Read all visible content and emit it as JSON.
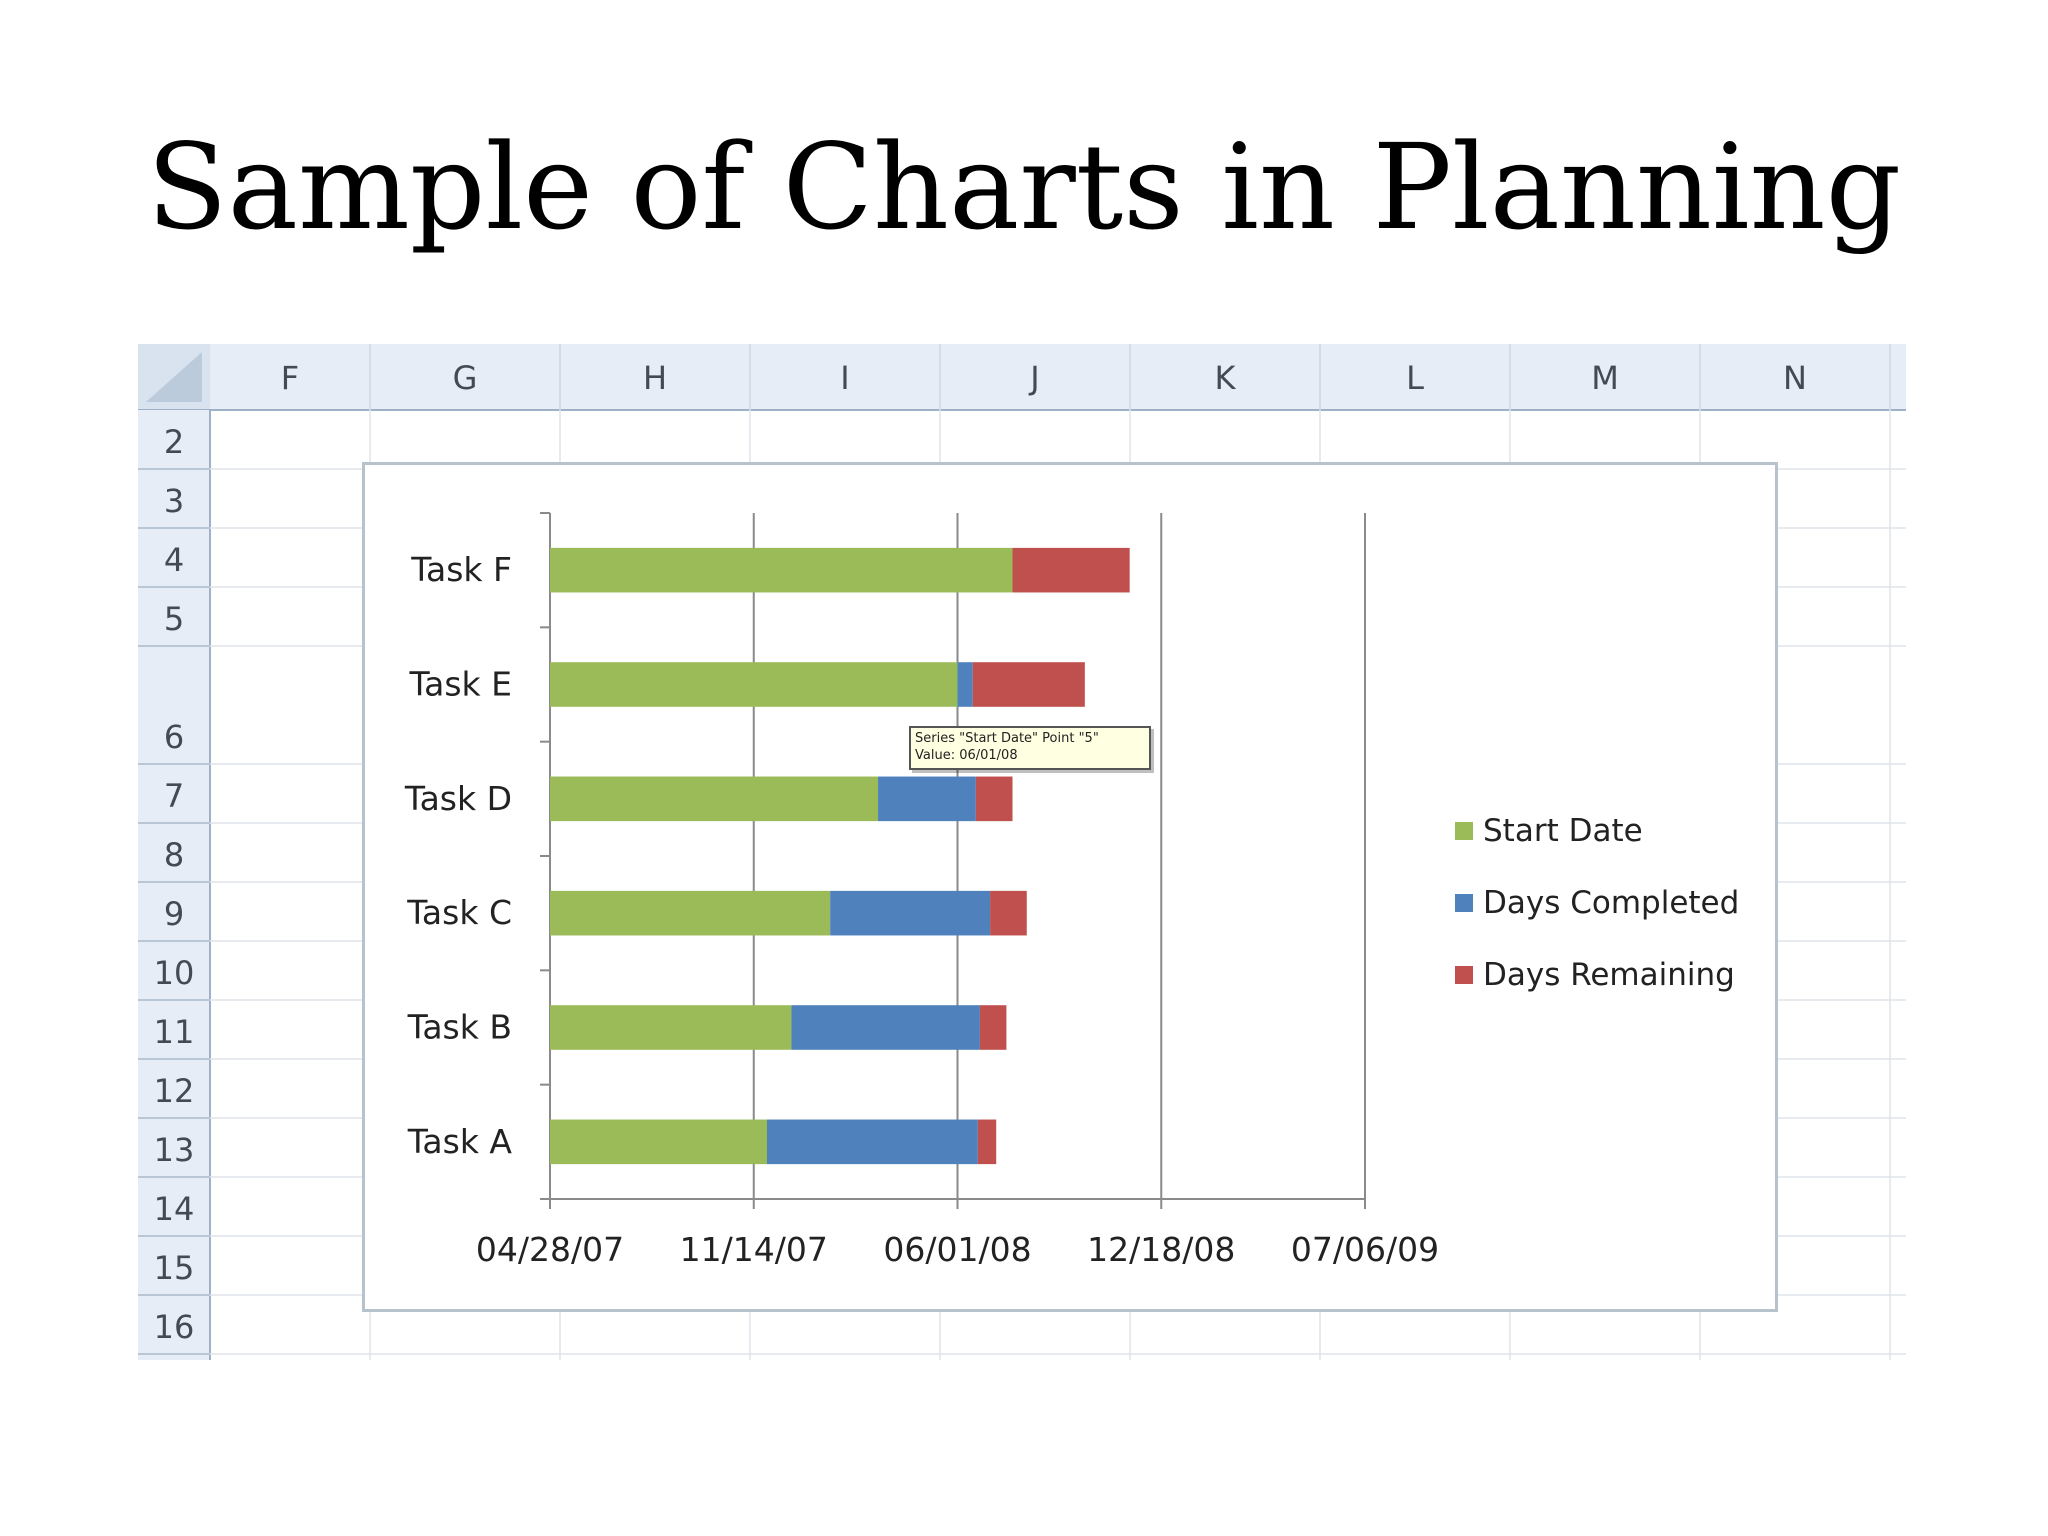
{
  "slide": {
    "title": "Sample of Charts in Planning"
  },
  "spreadsheet": {
    "columns": [
      "F",
      "G",
      "H",
      "I",
      "J",
      "K",
      "L",
      "M",
      "N"
    ],
    "rows": [
      "2",
      "3",
      "4",
      "5",
      "6",
      "7",
      "8",
      "9",
      "10",
      "11",
      "12",
      "13",
      "14",
      "15",
      "16"
    ]
  },
  "chart_data": {
    "type": "bar",
    "orientation": "horizontal",
    "stacked": true,
    "title": "",
    "xlabel": "",
    "ylabel": "",
    "categories": [
      "Task A",
      "Task B",
      "Task C",
      "Task D",
      "Task E",
      "Task F"
    ],
    "series": [
      {
        "name": "Start Date",
        "color": "#9bbb59",
        "values": [
          "2007-11-27",
          "2007-12-21",
          "2008-01-28",
          "2008-03-15",
          "2008-06-01",
          "2008-07-25"
        ]
      },
      {
        "name": "Days Completed",
        "color": "#4f81bd",
        "values": [
          207,
          185,
          157,
          96,
          15,
          0
        ]
      },
      {
        "name": "Days Remaining",
        "color": "#c0504d",
        "values": [
          18,
          26,
          36,
          36,
          110,
          115
        ]
      }
    ],
    "x_tick_labels": [
      "04/28/07",
      "11/14/07",
      "06/01/08",
      "12/18/08",
      "07/06/09"
    ],
    "xlim": [
      "2007-04-28",
      "2009-07-06"
    ],
    "grid": "vertical",
    "legend": "right",
    "tooltip": [
      "Series \"Start Date\" Point \"5\"",
      "Value: 06/01/08"
    ]
  }
}
